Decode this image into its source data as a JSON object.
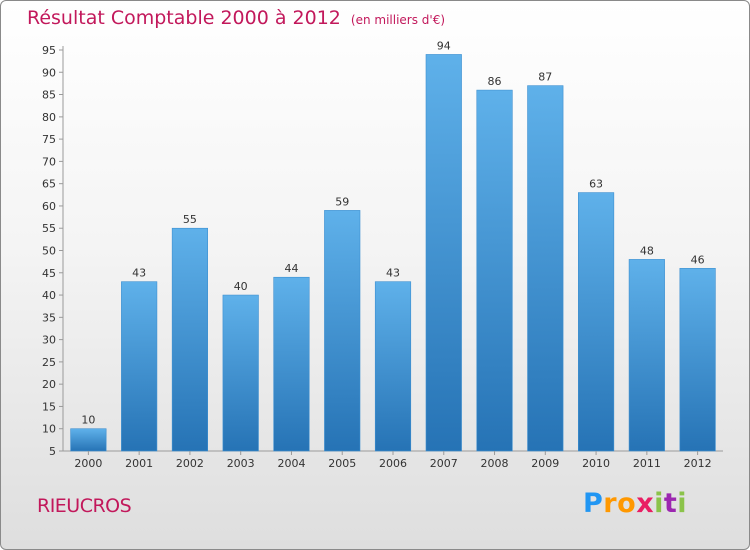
{
  "title": "Résultat Comptable 2000 à 2012",
  "subtitle": "(en milliers d'€)",
  "town": "RIEUCROS",
  "logo": {
    "letters": [
      "P",
      "r",
      "o",
      "x",
      "i",
      "t",
      "i"
    ]
  },
  "colors": {
    "title": "#c2185b",
    "bar_top": "#5fb1ea",
    "bar_bottom": "#2673b5",
    "axis": "#9a9a9a",
    "text": "#333333"
  },
  "chart_data": {
    "type": "bar",
    "title": "Résultat Comptable 2000 à 2012",
    "ylabel": "en milliers d'€",
    "xlabel": "",
    "categories": [
      "2000",
      "2001",
      "2002",
      "2003",
      "2004",
      "2005",
      "2006",
      "2007",
      "2008",
      "2009",
      "2010",
      "2011",
      "2012"
    ],
    "values": [
      10,
      43,
      55,
      40,
      44,
      59,
      43,
      94,
      86,
      87,
      63,
      48,
      46
    ],
    "ylim": [
      5,
      95
    ],
    "yticks": [
      5,
      10,
      15,
      20,
      25,
      30,
      35,
      40,
      45,
      50,
      55,
      60,
      65,
      70,
      75,
      80,
      85,
      90,
      95
    ],
    "grid": false,
    "data_labels": true
  }
}
